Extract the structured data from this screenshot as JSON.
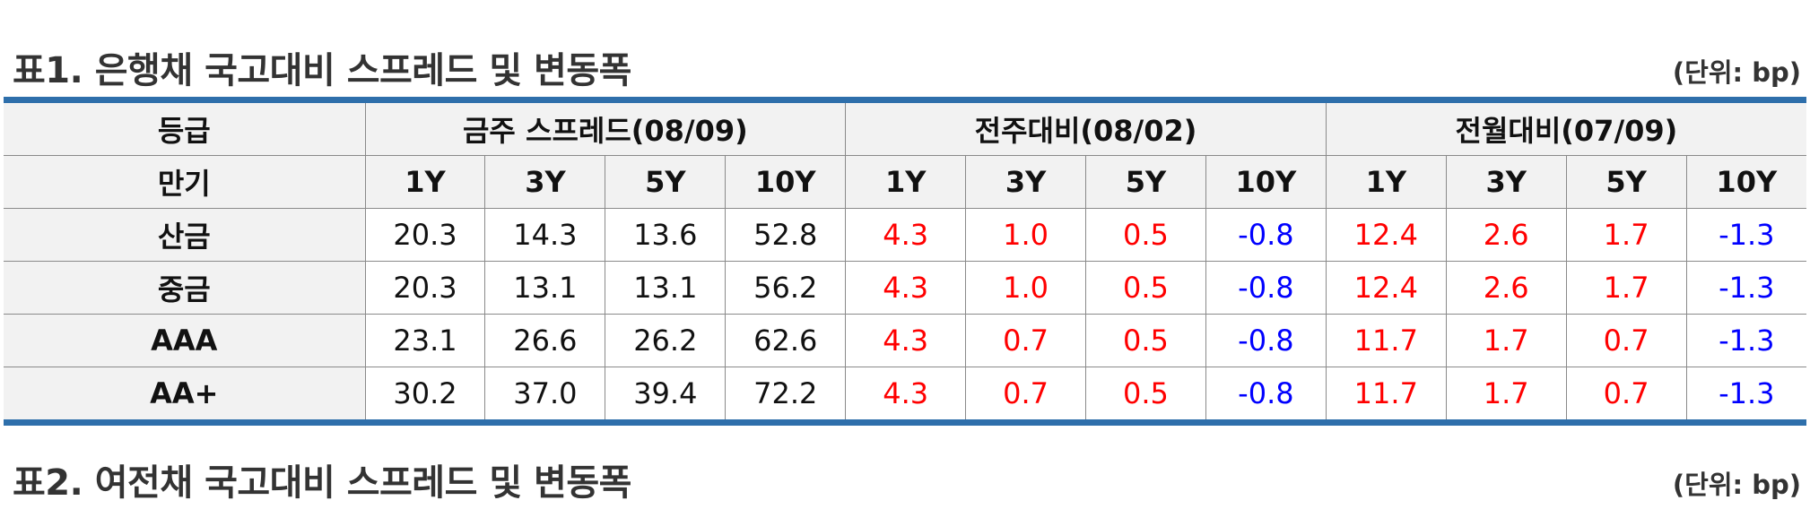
{
  "table1": {
    "title": "표1. 은행채 국고대비 스프레드 및 변동폭",
    "unit": "(단위: bp)",
    "header": {
      "grade_label": "등급",
      "maturity_label": "만기",
      "groups": [
        "금주 스프레드(08/09)",
        "전주대비(08/02)",
        "전월대비(07/09)"
      ],
      "maturities": [
        "1Y",
        "3Y",
        "5Y",
        "10Y"
      ]
    },
    "rows": [
      {
        "grade": "산금",
        "spread": [
          "20.3",
          "14.3",
          "13.6",
          "52.8"
        ],
        "wow": [
          "4.3",
          "1.0",
          "0.5",
          "-0.8"
        ],
        "mom": [
          "12.4",
          "2.6",
          "1.7",
          "-1.3"
        ]
      },
      {
        "grade": "중금",
        "spread": [
          "20.3",
          "13.1",
          "13.1",
          "56.2"
        ],
        "wow": [
          "4.3",
          "1.0",
          "0.5",
          "-0.8"
        ],
        "mom": [
          "12.4",
          "2.6",
          "1.7",
          "-1.3"
        ]
      },
      {
        "grade": "AAA",
        "spread": [
          "23.1",
          "26.6",
          "26.2",
          "62.6"
        ],
        "wow": [
          "4.3",
          "0.7",
          "0.5",
          "-0.8"
        ],
        "mom": [
          "11.7",
          "1.7",
          "0.7",
          "-1.3"
        ]
      },
      {
        "grade": "AA+",
        "spread": [
          "30.2",
          "37.0",
          "39.4",
          "72.2"
        ],
        "wow": [
          "4.3",
          "0.7",
          "0.5",
          "-0.8"
        ],
        "mom": [
          "11.7",
          "1.7",
          "0.7",
          "-1.3"
        ]
      }
    ]
  },
  "table2": {
    "title": "표2. 여전채 국고대비 스프레드 및 변동폭",
    "unit": "(단위: bp)"
  },
  "colors": {
    "rule": "#2e6fab",
    "positive": "#ff0000",
    "negative": "#0000ff",
    "header_bg": "#f2f2f2"
  }
}
